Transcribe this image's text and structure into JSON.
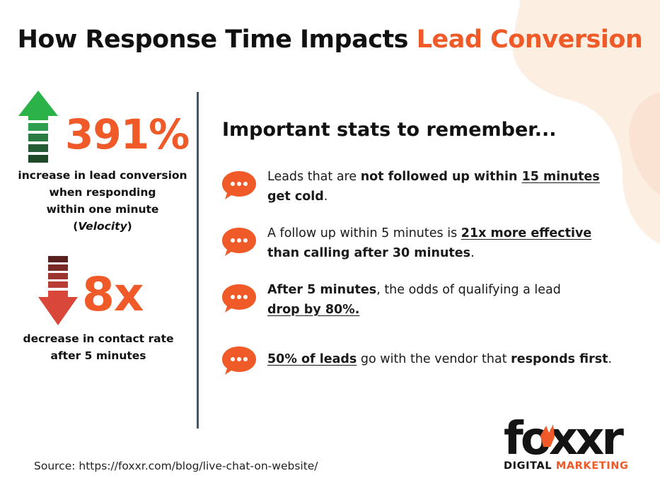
{
  "title": {
    "part1": "How Response Time Impacts ",
    "highlight": "Lead Conversion"
  },
  "left": {
    "stat1": {
      "value": "391%",
      "caption_lines": [
        "increase in lead conversion",
        "when responding",
        "within one minute"
      ],
      "caption_paren_open": "(",
      "caption_italic": "Velocity",
      "caption_paren_close": ")"
    },
    "stat2": {
      "value": "8x",
      "caption_lines": [
        "decrease in contact rate",
        "after 5 minutes"
      ]
    }
  },
  "right": {
    "heading": "Important stats to remember...",
    "bullets": [
      {
        "t1": "Leads that are ",
        "b1": "not followed up within ",
        "u1": "15 minutes",
        "b2": "get cold",
        "t2": "."
      },
      {
        "t1": "A follow up within 5 minutes is ",
        "u1": "21x more effective",
        "b1": "than calling after 30 minutes",
        "t2": "."
      },
      {
        "b1": "After 5 minutes",
        "t1": ", the odds of qualifying a lead",
        "u1": "drop by 80%."
      },
      {
        "u1": "50% of leads",
        "t1": " go with the vendor that ",
        "b1": "responds first",
        "t2": "."
      }
    ]
  },
  "source": "Source: https://foxxr.com/blog/live-chat-on-website/",
  "logo": {
    "wordmark": "foxxr",
    "sub1": "DIGITAL ",
    "sub2": "MARKETING"
  },
  "icons": {
    "up": "arrow-up-icon",
    "down": "arrow-down-icon",
    "bubble": "chat-bubble-icon"
  },
  "colors": {
    "accent": "#ef5a28",
    "green": "#2bb34a",
    "red": "#d9473a",
    "dark_red": "#5a1f1f",
    "dark_green": "#1e4a2a",
    "text": "#111111",
    "divider": "#4a5563",
    "blob": "#fdeee2"
  }
}
